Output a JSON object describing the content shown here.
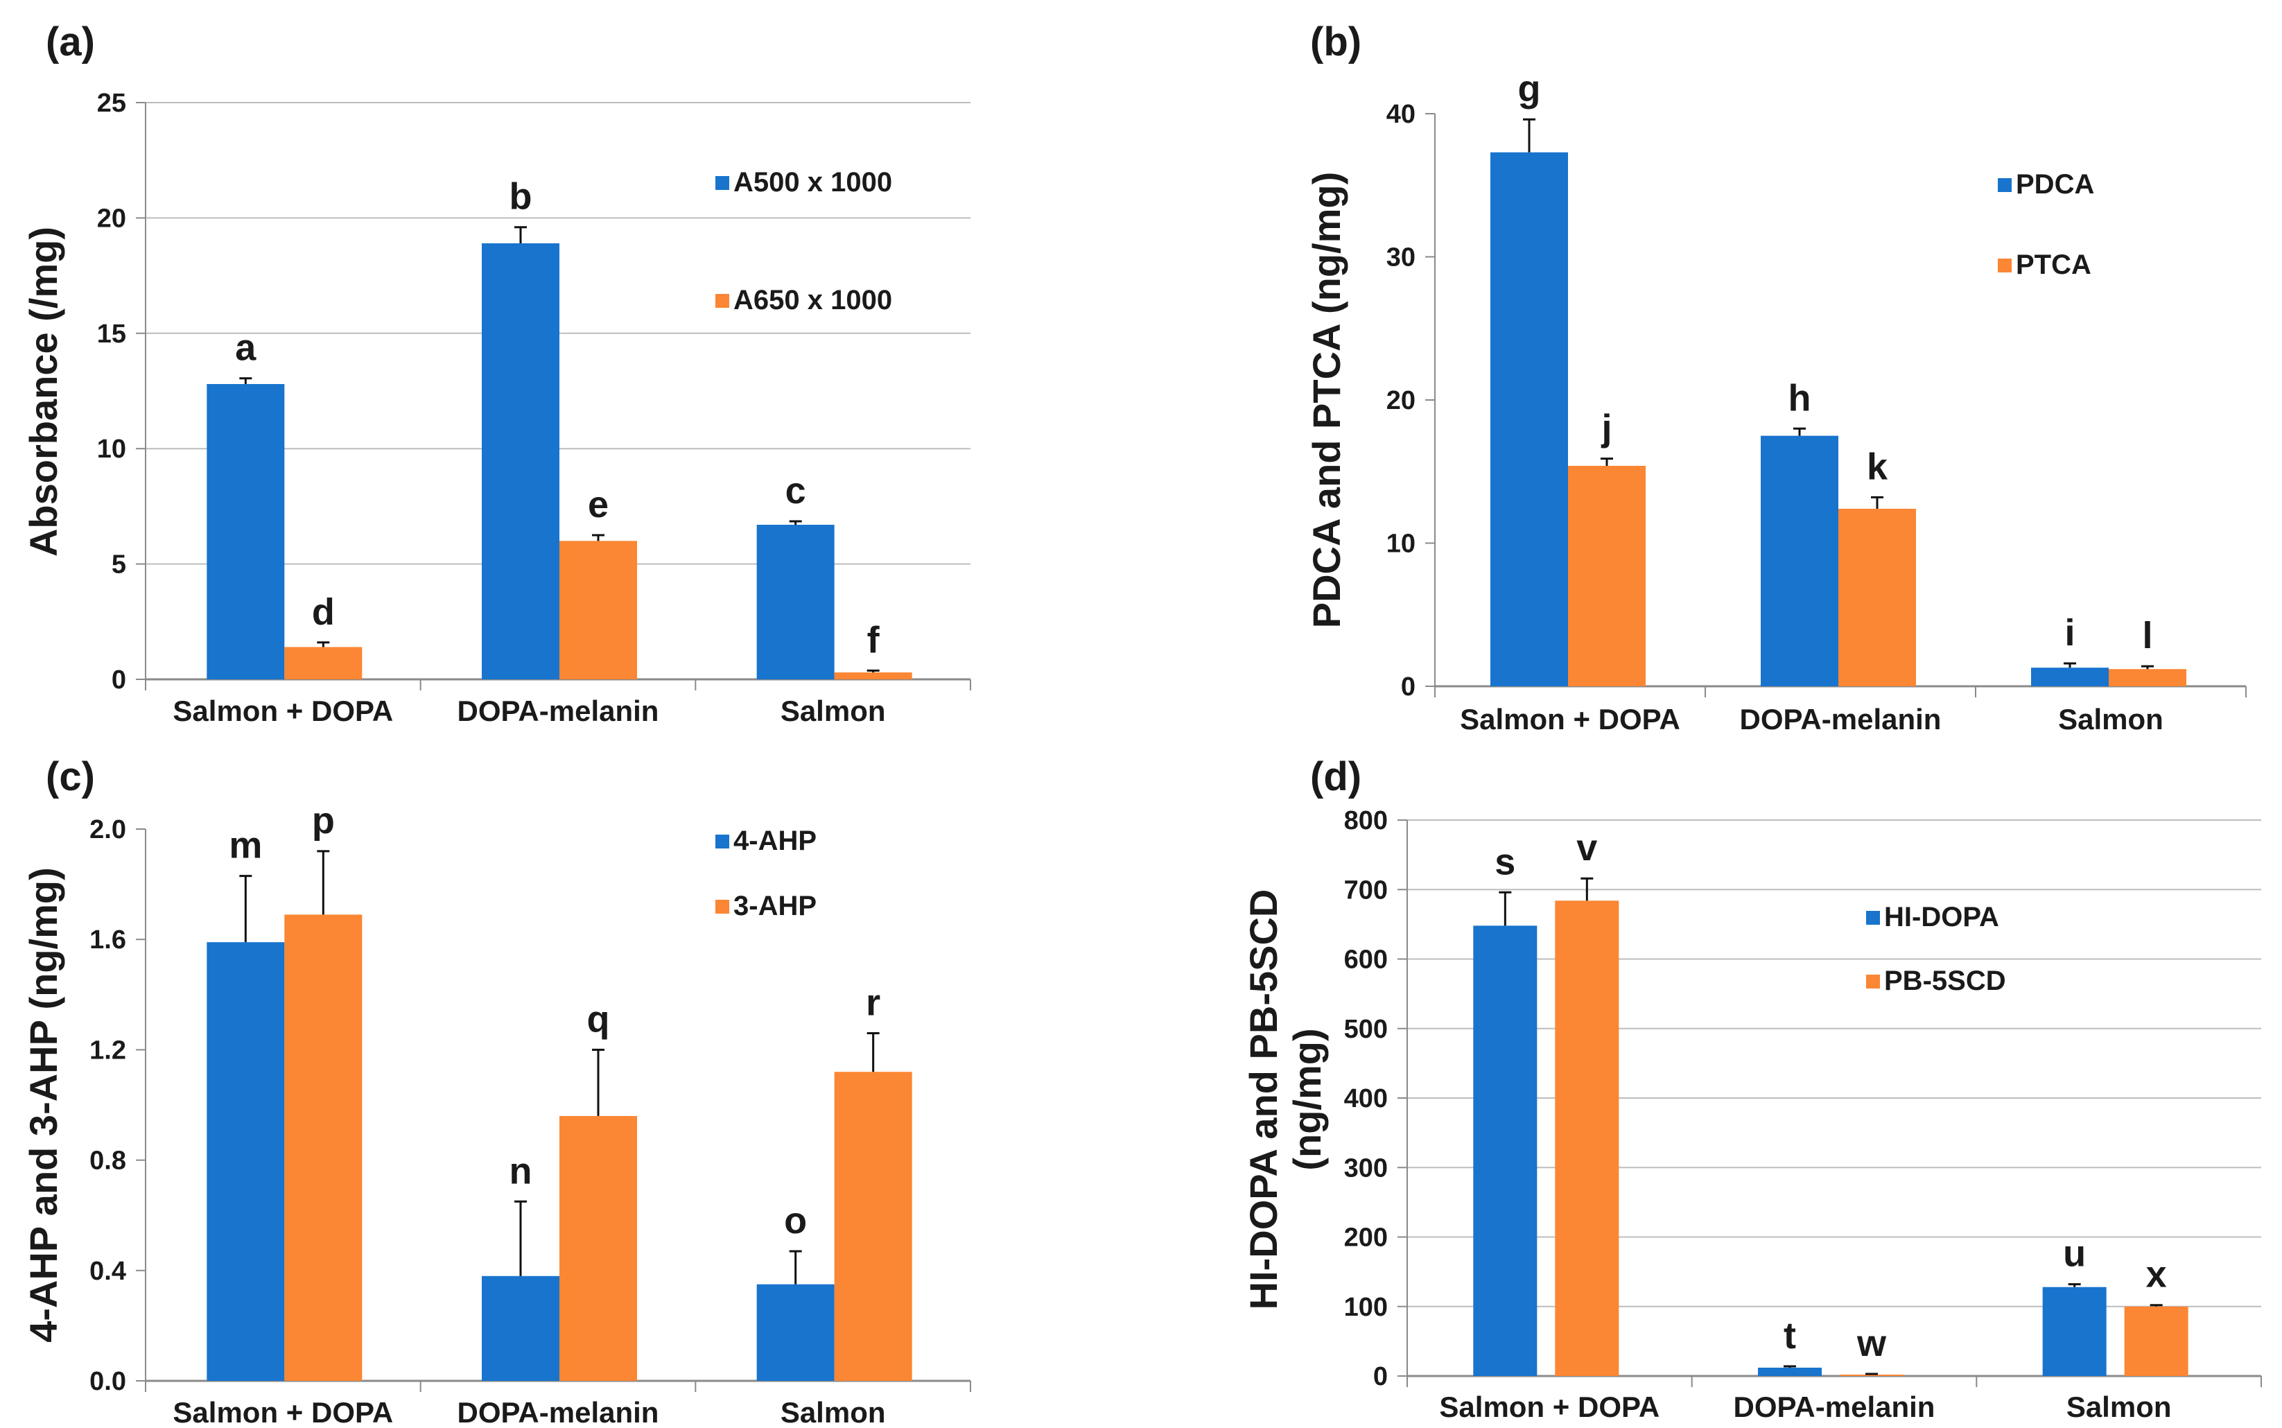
{
  "colors": {
    "blue": "#1874CD",
    "orange": "#FB8633",
    "grid": "#bdbdbd",
    "axis": "#8a8a8a"
  },
  "chart_data": [
    {
      "panel": "(a)",
      "type": "bar",
      "categories": [
        "Salmon + DOPA",
        "DOPA-melanin",
        "Salmon"
      ],
      "ylabel": "Absorbance  (/mg)",
      "ylim": [
        0,
        25
      ],
      "yticks": [
        0,
        5,
        10,
        15,
        20,
        25
      ],
      "ytick_labels": [
        "0",
        "5",
        "10",
        "15",
        "20",
        "25"
      ],
      "grid": true,
      "legend": "right",
      "series": [
        {
          "name": "A500 x 1000",
          "color": "#1874CD",
          "values": [
            12.8,
            18.9,
            6.7
          ],
          "errors": [
            0.25,
            0.7,
            0.15
          ],
          "letters": [
            "a",
            "b",
            "c"
          ]
        },
        {
          "name": "A650 x 1000",
          "color": "#FB8633",
          "values": [
            1.4,
            6.0,
            0.3
          ],
          "errors": [
            0.2,
            0.25,
            0.08
          ],
          "letters": [
            "d",
            "e",
            "f"
          ]
        }
      ]
    },
    {
      "panel": "(b)",
      "type": "bar",
      "categories": [
        "Salmon + DOPA",
        "DOPA-melanin",
        "Salmon"
      ],
      "ylabel": "PDCA and PTCA (ng/mg)",
      "ylim": [
        0,
        40
      ],
      "yticks": [
        0,
        10,
        20,
        30,
        40
      ],
      "ytick_labels": [
        "0",
        "10",
        "20",
        "30",
        "40"
      ],
      "grid": false,
      "legend": "right",
      "series": [
        {
          "name": "PDCA",
          "color": "#1874CD",
          "values": [
            37.3,
            17.5,
            1.3
          ],
          "errors": [
            2.3,
            0.5,
            0.3
          ],
          "letters": [
            "g",
            "h",
            "i"
          ]
        },
        {
          "name": "PTCA",
          "color": "#FB8633",
          "values": [
            15.4,
            12.4,
            1.2
          ],
          "errors": [
            0.5,
            0.8,
            0.2
          ],
          "letters": [
            "j",
            "k",
            "l"
          ]
        }
      ]
    },
    {
      "panel": "(c)",
      "type": "bar",
      "categories": [
        "Salmon + DOPA",
        "DOPA-melanin",
        "Salmon"
      ],
      "ylabel": "4-AHP and 3-AHP (ng/mg)",
      "ylim": [
        0,
        2.0
      ],
      "yticks": [
        0,
        0.4,
        0.8,
        1.2,
        1.6,
        2.0
      ],
      "ytick_labels": [
        "0.0",
        "0.4",
        "0.8",
        "1.2",
        "1.6",
        "2.0"
      ],
      "grid": false,
      "legend": "right",
      "series": [
        {
          "name": "4-AHP",
          "color": "#1874CD",
          "values": [
            1.59,
            0.38,
            0.35
          ],
          "errors": [
            0.24,
            0.27,
            0.12
          ],
          "letters": [
            "m",
            "n",
            "o"
          ]
        },
        {
          "name": "3-AHP",
          "color": "#FB8633",
          "values": [
            1.69,
            0.96,
            1.12
          ],
          "errors": [
            0.23,
            0.24,
            0.14
          ],
          "letters": [
            "p",
            "q",
            "r"
          ]
        }
      ]
    },
    {
      "panel": "(d)",
      "type": "bar",
      "categories": [
        "Salmon + DOPA",
        "DOPA-melanin",
        "Salmon"
      ],
      "ylabel": "HI-DOPA and PB-5SCD (ng/mg)",
      "ylabel_lines": [
        "HI-DOPA and PB-5SCD",
        "(ng/mg)"
      ],
      "ylim": [
        0,
        800
      ],
      "yticks": [
        0,
        100,
        200,
        300,
        400,
        500,
        600,
        700,
        800
      ],
      "ytick_labels": [
        "0",
        "100",
        "200",
        "300",
        "400",
        "500",
        "600",
        "700",
        "800"
      ],
      "grid": true,
      "legend": "right",
      "series": [
        {
          "name": "HI-DOPA",
          "color": "#1874CD",
          "values": [
            648,
            12,
            128
          ],
          "errors": [
            48,
            2,
            4
          ],
          "letters": [
            "s",
            "t",
            "u"
          ]
        },
        {
          "name": "PB-5SCD",
          "color": "#FB8633",
          "values": [
            684,
            2,
            100
          ],
          "errors": [
            32,
            1,
            2
          ],
          "letters": [
            "v",
            "w",
            "x"
          ]
        }
      ]
    }
  ]
}
